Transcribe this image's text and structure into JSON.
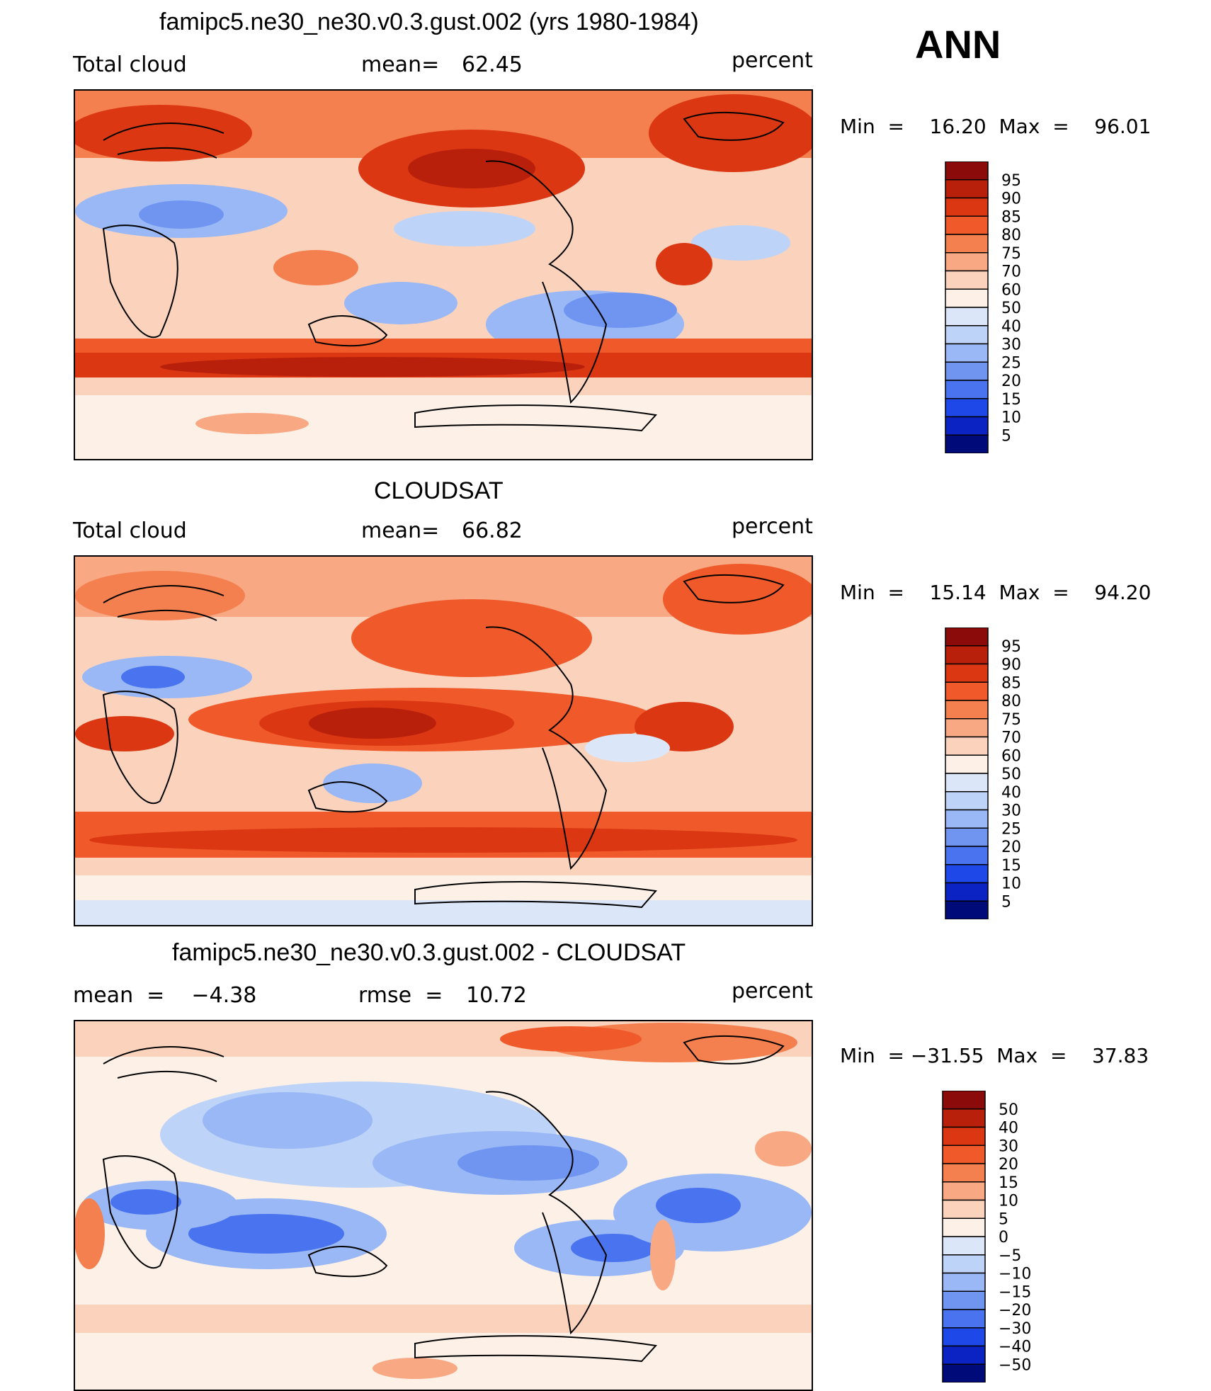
{
  "season": "ANN",
  "panels": [
    {
      "title": "famipc5.ne30_ne30.v0.3.gust.002 (yrs 1980-1984)",
      "left_label": "Total cloud",
      "stat_label": "mean=",
      "stat_value": "62.45",
      "units": "percent",
      "range_text": "Min  =    16.20  Max  =    96.01",
      "colorbar": {
        "labels": [
          "95",
          "90",
          "85",
          "80",
          "75",
          "70",
          "60",
          "50",
          "40",
          "30",
          "25",
          "20",
          "15",
          "10",
          "5"
        ],
        "colors": [
          "#8b0a0a",
          "#b8200c",
          "#db3712",
          "#f05a2a",
          "#f47f4f",
          "#f8a984",
          "#fbd3bd",
          "#fdf0e6",
          "#dbe7f8",
          "#bdd3f7",
          "#99b8f5",
          "#6f95f1",
          "#4a73ef",
          "#1e48e8",
          "#0b23c2",
          "#000b7a"
        ]
      }
    },
    {
      "title": "CLOUDSAT",
      "left_label": "Total cloud",
      "stat_label": "mean=",
      "stat_value": "66.82",
      "units": "percent",
      "range_text": "Min  =    15.14  Max  =    94.20",
      "colorbar": {
        "labels": [
          "95",
          "90",
          "85",
          "80",
          "75",
          "70",
          "60",
          "50",
          "40",
          "30",
          "25",
          "20",
          "15",
          "10",
          "5"
        ],
        "colors": [
          "#8b0a0a",
          "#b8200c",
          "#db3712",
          "#f05a2a",
          "#f47f4f",
          "#f8a984",
          "#fbd3bd",
          "#fdf0e6",
          "#dbe7f8",
          "#bdd3f7",
          "#99b8f5",
          "#6f95f1",
          "#4a73ef",
          "#1e48e8",
          "#0b23c2",
          "#000b7a"
        ]
      }
    },
    {
      "title": "famipc5.ne30_ne30.v0.3.gust.002 - CLOUDSAT",
      "left_label": "mean  =    −4.38",
      "stat_label": "rmse  =",
      "stat_value": "10.72",
      "units": "percent",
      "range_text": "Min  = −31.55  Max  =    37.83",
      "colorbar": {
        "labels": [
          "50",
          "40",
          "30",
          "20",
          "15",
          "10",
          "5",
          "0",
          "−5",
          "−10",
          "−15",
          "−20",
          "−30",
          "−40",
          "−50"
        ],
        "colors": [
          "#8b0a0a",
          "#b8200c",
          "#db3712",
          "#f05a2a",
          "#f47f4f",
          "#f8a984",
          "#fbd3bd",
          "#fdf0e6",
          "#dbe7f8",
          "#bdd3f7",
          "#99b8f5",
          "#6f95f1",
          "#4a73ef",
          "#1e48e8",
          "#0b23c2",
          "#000b7a"
        ]
      }
    }
  ]
}
